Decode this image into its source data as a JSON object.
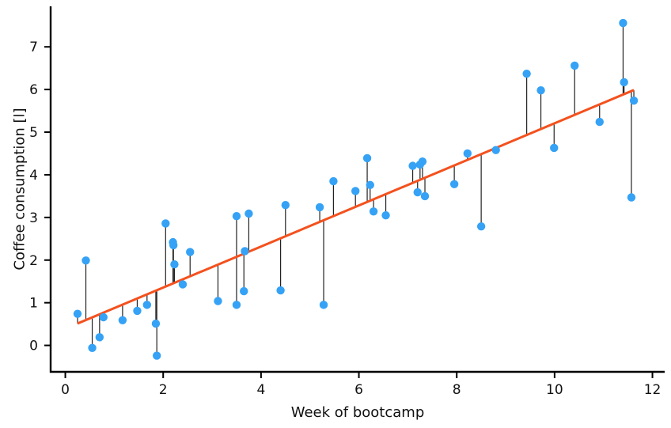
{
  "chart_data": {
    "type": "scatter",
    "title": "",
    "xlabel": "Week of bootcamp",
    "ylabel": "Coffee consumption [l]",
    "xlim": [
      -0.3,
      12.25
    ],
    "ylim": [
      -0.62,
      7.95
    ],
    "xticks": [
      0,
      2,
      4,
      6,
      8,
      10,
      12
    ],
    "yticks": [
      0,
      1,
      2,
      3,
      4,
      5,
      6,
      7
    ],
    "grid": false,
    "legend": "none",
    "fit_line": {
      "name": "Linear fit",
      "slope": 0.4815,
      "intercept": 0.3923,
      "x_range": [
        0.25,
        11.62
      ],
      "color": "#f4511e"
    },
    "residual_color": "#222222",
    "point_color": "#35a2f5",
    "series": [
      {
        "name": "Observations",
        "x": [
          0.25,
          0.42,
          0.55,
          0.7,
          0.78,
          1.17,
          1.47,
          1.67,
          1.85,
          1.87,
          2.05,
          2.2,
          2.21,
          2.23,
          2.4,
          2.55,
          3.12,
          3.5,
          3.5,
          3.65,
          3.67,
          3.75,
          4.4,
          4.5,
          5.2,
          5.28,
          5.48,
          5.93,
          6.17,
          6.23,
          6.3,
          6.55,
          7.1,
          7.2,
          7.25,
          7.3,
          7.35,
          7.95,
          8.22,
          8.5,
          8.8,
          9.43,
          9.72,
          9.99,
          10.41,
          10.92,
          11.4,
          11.42,
          11.57,
          11.62
        ],
        "y": [
          0.74,
          1.99,
          -0.06,
          0.19,
          0.66,
          0.59,
          0.81,
          0.95,
          0.51,
          -0.24,
          2.86,
          2.42,
          2.35,
          1.9,
          1.43,
          2.19,
          1.04,
          3.03,
          0.95,
          1.27,
          2.21,
          3.09,
          1.29,
          3.29,
          3.24,
          0.95,
          3.85,
          3.62,
          4.39,
          3.76,
          3.14,
          3.05,
          4.21,
          3.59,
          4.24,
          4.31,
          3.5,
          3.78,
          4.5,
          2.79,
          4.58,
          6.37,
          5.98,
          4.63,
          6.56,
          5.24,
          7.56,
          6.17,
          3.47,
          5.74
        ]
      }
    ]
  }
}
